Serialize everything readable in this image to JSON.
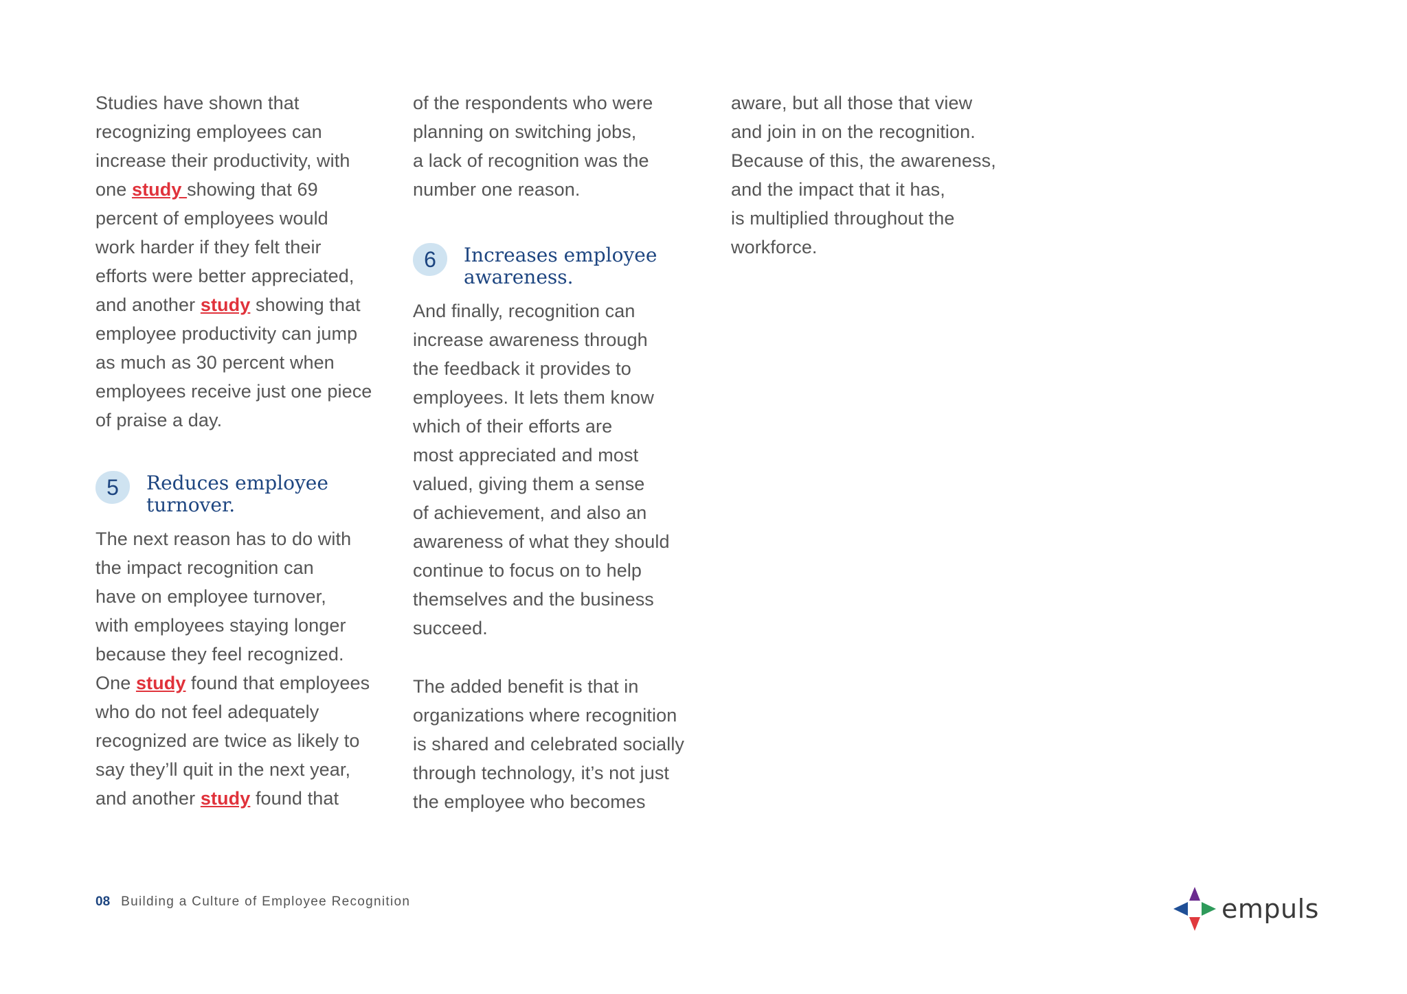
{
  "columns": [
    {
      "blocks": [
        {
          "type": "para",
          "lines": [
            [
              {
                "t": "Studies have shown that"
              }
            ],
            [
              {
                "t": "recognizing employees can"
              }
            ],
            [
              {
                "t": "increase their productivity, with"
              }
            ],
            [
              {
                "t": "one "
              },
              {
                "t": "study ",
                "link": true
              },
              {
                "t": "showing that 69"
              }
            ],
            [
              {
                "t": "percent of employees would"
              }
            ],
            [
              {
                "t": "work harder if they felt their"
              }
            ],
            [
              {
                "t": "efforts were better appreciated,"
              }
            ],
            [
              {
                "t": "and another "
              },
              {
                "t": "study",
                "link": true
              },
              {
                "t": " showing that"
              }
            ],
            [
              {
                "t": "employee productivity can jump"
              }
            ],
            [
              {
                "t": "as much as 30 percent when"
              }
            ],
            [
              {
                "t": "employees receive just one piece"
              }
            ],
            [
              {
                "t": "of praise a day."
              }
            ]
          ]
        },
        {
          "type": "heading",
          "number": "5",
          "lines": [
            "Reduces employee",
            "turnover."
          ]
        },
        {
          "type": "para",
          "lines": [
            [
              {
                "t": "The next reason has to do with"
              }
            ],
            [
              {
                "t": "the impact recognition can"
              }
            ],
            [
              {
                "t": "have on employee turnover,"
              }
            ],
            [
              {
                "t": "with employees staying longer"
              }
            ],
            [
              {
                "t": "because they feel recognized."
              }
            ],
            [
              {
                "t": "One "
              },
              {
                "t": "study",
                "link": true
              },
              {
                "t": " found that employees"
              }
            ],
            [
              {
                "t": "who do not feel adequately"
              }
            ],
            [
              {
                "t": "recognized are twice as likely to"
              }
            ],
            [
              {
                "t": "say they’ll quit in the next year,"
              }
            ],
            [
              {
                "t": "and another "
              },
              {
                "t": "study",
                "link": true
              },
              {
                "t": " found that"
              }
            ]
          ]
        }
      ]
    },
    {
      "blocks": [
        {
          "type": "para",
          "lines": [
            [
              {
                "t": "of the respondents who were"
              }
            ],
            [
              {
                "t": "planning on switching jobs,"
              }
            ],
            [
              {
                "t": "a lack of recognition was the"
              }
            ],
            [
              {
                "t": "number one reason."
              }
            ]
          ]
        },
        {
          "type": "heading",
          "number": "6",
          "lines": [
            "Increases employee",
            "awareness."
          ]
        },
        {
          "type": "para",
          "lines": [
            [
              {
                "t": "And finally, recognition can"
              }
            ],
            [
              {
                "t": "increase awareness through"
              }
            ],
            [
              {
                "t": "the feedback it provides to"
              }
            ],
            [
              {
                "t": "employees. It lets them know"
              }
            ],
            [
              {
                "t": "which of their efforts are"
              }
            ],
            [
              {
                "t": "most appreciated and most"
              }
            ],
            [
              {
                "t": "valued, giving them a sense"
              }
            ],
            [
              {
                "t": "of achievement, and also an"
              }
            ],
            [
              {
                "t": "awareness of what they should"
              }
            ],
            [
              {
                "t": "continue to focus on to help"
              }
            ],
            [
              {
                "t": "themselves and the business"
              }
            ],
            [
              {
                "t": "succeed."
              }
            ]
          ]
        },
        {
          "type": "para",
          "lines": [
            [
              {
                "t": "The added benefit is that in"
              }
            ],
            [
              {
                "t": "organizations where recognition"
              }
            ],
            [
              {
                "t": "is shared and celebrated socially"
              }
            ],
            [
              {
                "t": "through technology, it’s not just"
              }
            ],
            [
              {
                "t": "the employee who becomes"
              }
            ]
          ]
        }
      ]
    },
    {
      "blocks": [
        {
          "type": "para",
          "lines": [
            [
              {
                "t": "aware, but all those that view"
              }
            ],
            [
              {
                "t": "and join in on the recognition."
              }
            ],
            [
              {
                "t": "Because of this, the awareness,"
              }
            ],
            [
              {
                "t": "and the impact that it has,"
              }
            ],
            [
              {
                "t": "is multiplied throughout the"
              }
            ],
            [
              {
                "t": "workforce."
              }
            ]
          ]
        }
      ]
    }
  ],
  "footer": {
    "page_number": "08",
    "title": "Building a Culture of Employee Recognition"
  },
  "logo": {
    "text": "empuls",
    "colors": {
      "top": "#6b2c8f",
      "left": "#1f4f96",
      "right": "#2e9a5a",
      "bottom": "#e03a3e"
    }
  },
  "colors": {
    "heading": "#1d4580",
    "body": "#555555",
    "link": "#e0323b",
    "badge": "#cfe3f1"
  }
}
